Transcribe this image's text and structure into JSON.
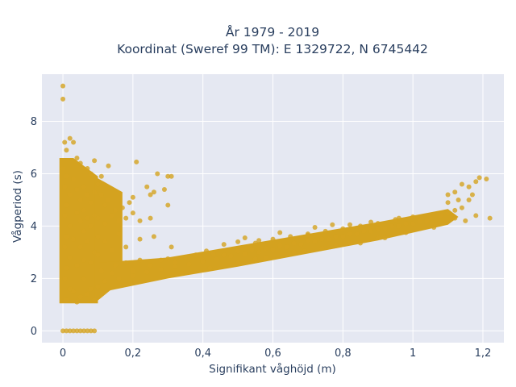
{
  "chart_data": {
    "type": "scatter",
    "title": "År 1979 - 2019",
    "subtitle": "Koordinat (Sweref 99 TM): E 1329722, N 6745442",
    "xlabel": "Signifikant våghöjd (m)",
    "ylabel": "Vågperiod (s)",
    "xlim": [
      -0.06,
      1.26
    ],
    "ylim": [
      -0.45,
      9.8
    ],
    "x_ticks": [
      {
        "value": 0,
        "label": "0"
      },
      {
        "value": 0.2,
        "label": "0,2"
      },
      {
        "value": 0.4,
        "label": "0,4"
      },
      {
        "value": 0.6,
        "label": "0,6"
      },
      {
        "value": 0.8,
        "label": "0,8"
      },
      {
        "value": 1.0,
        "label": "1"
      },
      {
        "value": 1.2,
        "label": "1,2"
      }
    ],
    "y_ticks": [
      {
        "value": 0,
        "label": "0"
      },
      {
        "value": 2,
        "label": "2"
      },
      {
        "value": 4,
        "label": "4"
      },
      {
        "value": 6,
        "label": "6"
      },
      {
        "value": 8,
        "label": "8"
      }
    ],
    "grid": true,
    "marker_color": "#d4a21f",
    "background_color": "#e5e8f2",
    "series": [
      {
        "points": [
          [
            0,
            0
          ],
          [
            0.01,
            0
          ],
          [
            0.02,
            0
          ],
          [
            0.03,
            0
          ],
          [
            0.04,
            0
          ],
          [
            0.05,
            0
          ],
          [
            0.06,
            0
          ],
          [
            0.07,
            0
          ],
          [
            0.08,
            0
          ],
          [
            0.09,
            0
          ],
          [
            0,
            9.35
          ],
          [
            0,
            8.85
          ],
          [
            0.005,
            7.2
          ],
          [
            0.02,
            7.35
          ],
          [
            0.03,
            7.2
          ],
          [
            0.01,
            6.9
          ],
          [
            0.04,
            6.6
          ],
          [
            0,
            6.2
          ],
          [
            0.01,
            5.9
          ],
          [
            0.005,
            5.5
          ],
          [
            0.02,
            5.2
          ],
          [
            0.01,
            4.8
          ],
          [
            0.005,
            4.4
          ],
          [
            0.02,
            4.0
          ],
          [
            0.01,
            3.6
          ],
          [
            0.005,
            3.2
          ],
          [
            0.02,
            2.8
          ],
          [
            0.01,
            2.4
          ],
          [
            0.005,
            2.0
          ],
          [
            0.02,
            1.6
          ],
          [
            0.01,
            1.2
          ],
          [
            0.03,
            5.8
          ],
          [
            0.04,
            5.4
          ],
          [
            0.05,
            5.0
          ],
          [
            0.06,
            5.5
          ],
          [
            0.07,
            5.2
          ],
          [
            0.08,
            4.9
          ],
          [
            0.09,
            5.3
          ],
          [
            0.04,
            4.5
          ],
          [
            0.05,
            4.2
          ],
          [
            0.06,
            4.6
          ],
          [
            0.07,
            4.3
          ],
          [
            0.08,
            4.0
          ],
          [
            0.09,
            4.4
          ],
          [
            0.06,
            3.8
          ],
          [
            0.03,
            3.5
          ],
          [
            0.05,
            3.2
          ],
          [
            0.07,
            3.4
          ],
          [
            0.09,
            3.0
          ],
          [
            0.06,
            2.7
          ],
          [
            0.04,
            2.5
          ],
          [
            0.08,
            2.6
          ],
          [
            0.03,
            1.5
          ],
          [
            0.05,
            1.3
          ],
          [
            0.07,
            1.4
          ],
          [
            0.09,
            1.2
          ],
          [
            0.04,
            1.1
          ],
          [
            0.08,
            1.6
          ],
          [
            0.06,
            2.0
          ],
          [
            0.1,
            5.6
          ],
          [
            0.11,
            5.2
          ],
          [
            0.12,
            4.8
          ],
          [
            0.13,
            5.0
          ],
          [
            0.1,
            4.3
          ],
          [
            0.12,
            4.1
          ],
          [
            0.14,
            4.4
          ],
          [
            0.1,
            3.6
          ],
          [
            0.12,
            3.4
          ],
          [
            0.14,
            3.1
          ],
          [
            0.1,
            2.9
          ],
          [
            0.11,
            2.3
          ],
          [
            0.1,
            1.7
          ],
          [
            0.07,
            6.2
          ],
          [
            0.09,
            6.5
          ],
          [
            0.11,
            5.9
          ],
          [
            0.13,
            6.3
          ],
          [
            0.05,
            6.4
          ],
          [
            0.08,
            6.0
          ],
          [
            0.15,
            4.6
          ],
          [
            0.16,
            4.2
          ],
          [
            0.17,
            4.7
          ],
          [
            0.18,
            4.3
          ],
          [
            0.19,
            4.9
          ],
          [
            0.2,
            4.5
          ],
          [
            0.21,
            6.45
          ],
          [
            0.27,
            6.0
          ],
          [
            0.3,
            5.9
          ],
          [
            0.31,
            5.9
          ],
          [
            0.26,
            5.3
          ],
          [
            0.25,
            5.2
          ],
          [
            0.22,
            4.2
          ],
          [
            0.25,
            4.3
          ],
          [
            0.29,
            5.4
          ],
          [
            0.3,
            4.8
          ],
          [
            0.24,
            5.5
          ],
          [
            0.2,
            5.1
          ],
          [
            0.14,
            2.2
          ],
          [
            0.15,
            2.5
          ],
          [
            0.18,
            2.6
          ],
          [
            0.2,
            2.3
          ],
          [
            0.22,
            2.7
          ],
          [
            0.25,
            2.5
          ],
          [
            0.28,
            2.7
          ],
          [
            0.3,
            2.75
          ],
          [
            0.32,
            2.6
          ],
          [
            0.35,
            2.8
          ],
          [
            0.38,
            2.9
          ],
          [
            0.4,
            2.7
          ],
          [
            0.43,
            2.95
          ],
          [
            0.46,
            2.9
          ],
          [
            0.5,
            3.05
          ],
          [
            0.54,
            3.1
          ],
          [
            0.58,
            3.15
          ],
          [
            0.62,
            3.25
          ],
          [
            0.66,
            3.35
          ],
          [
            0.7,
            3.45
          ],
          [
            0.74,
            3.5
          ],
          [
            0.78,
            3.6
          ],
          [
            0.82,
            3.7
          ],
          [
            0.86,
            3.8
          ],
          [
            0.9,
            3.9
          ],
          [
            0.94,
            4.0
          ],
          [
            0.98,
            4.1
          ],
          [
            1.02,
            4.2
          ],
          [
            1.05,
            4.3
          ],
          [
            1.08,
            4.4
          ],
          [
            0.12,
            1.9
          ],
          [
            0.16,
            2.0
          ],
          [
            0.2,
            2.1
          ],
          [
            0.24,
            2.25
          ],
          [
            0.28,
            2.35
          ],
          [
            0.32,
            2.45
          ],
          [
            0.36,
            2.55
          ],
          [
            0.4,
            2.65
          ],
          [
            0.44,
            2.75
          ],
          [
            0.48,
            2.85
          ],
          [
            0.52,
            2.95
          ],
          [
            0.56,
            3.0
          ],
          [
            0.6,
            3.1
          ],
          [
            0.64,
            3.2
          ],
          [
            0.68,
            3.3
          ],
          [
            0.72,
            3.4
          ],
          [
            0.76,
            3.5
          ],
          [
            0.8,
            3.6
          ],
          [
            0.84,
            3.7
          ],
          [
            0.88,
            3.8
          ],
          [
            0.92,
            3.9
          ],
          [
            0.96,
            4.0
          ],
          [
            1.0,
            4.1
          ],
          [
            1.04,
            4.2
          ],
          [
            0.46,
            3.3
          ],
          [
            0.5,
            3.4
          ],
          [
            0.55,
            3.35
          ],
          [
            0.6,
            3.5
          ],
          [
            0.65,
            3.6
          ],
          [
            0.7,
            3.7
          ],
          [
            0.75,
            3.8
          ],
          [
            0.8,
            3.9
          ],
          [
            0.85,
            4.0
          ],
          [
            0.9,
            4.1
          ],
          [
            0.95,
            4.25
          ],
          [
            1.0,
            4.35
          ],
          [
            0.34,
            2.2
          ],
          [
            0.42,
            2.4
          ],
          [
            0.5,
            2.6
          ],
          [
            0.58,
            2.8
          ],
          [
            0.66,
            3.0
          ],
          [
            0.74,
            3.15
          ],
          [
            0.82,
            3.35
          ],
          [
            0.9,
            3.55
          ],
          [
            0.98,
            3.75
          ],
          [
            1.06,
            3.95
          ],
          [
            1.1,
            4.5
          ],
          [
            1.12,
            4.6
          ],
          [
            1.1,
            4.9
          ],
          [
            1.14,
            4.7
          ],
          [
            1.16,
            5.0
          ],
          [
            1.18,
            4.4
          ],
          [
            1.12,
            4.3
          ],
          [
            1.15,
            4.2
          ],
          [
            1.1,
            5.2
          ],
          [
            1.12,
            5.3
          ],
          [
            1.16,
            5.5
          ],
          [
            1.18,
            5.7
          ],
          [
            1.19,
            5.85
          ],
          [
            1.21,
            5.8
          ],
          [
            1.14,
            5.6
          ],
          [
            1.22,
            4.3
          ],
          [
            1.17,
            5.2
          ],
          [
            1.13,
            5.0
          ],
          [
            0.82,
            4.05
          ],
          [
            0.77,
            4.05
          ],
          [
            0.62,
            3.75
          ],
          [
            0.72,
            3.95
          ],
          [
            0.52,
            3.55
          ],
          [
            0.78,
            3.25
          ],
          [
            0.85,
            3.35
          ],
          [
            0.92,
            3.55
          ],
          [
            0.69,
            3.05
          ],
          [
            0.55,
            2.75
          ],
          [
            0.41,
            3.05
          ],
          [
            0.56,
            3.45
          ],
          [
            0.7,
            3.65
          ],
          [
            0.88,
            4.15
          ],
          [
            0.96,
            4.3
          ],
          [
            0.18,
            3.2
          ],
          [
            0.22,
            3.5
          ],
          [
            0.26,
            3.6
          ],
          [
            0.31,
            3.2
          ],
          [
            0.16,
            3.7
          ]
        ]
      }
    ]
  }
}
